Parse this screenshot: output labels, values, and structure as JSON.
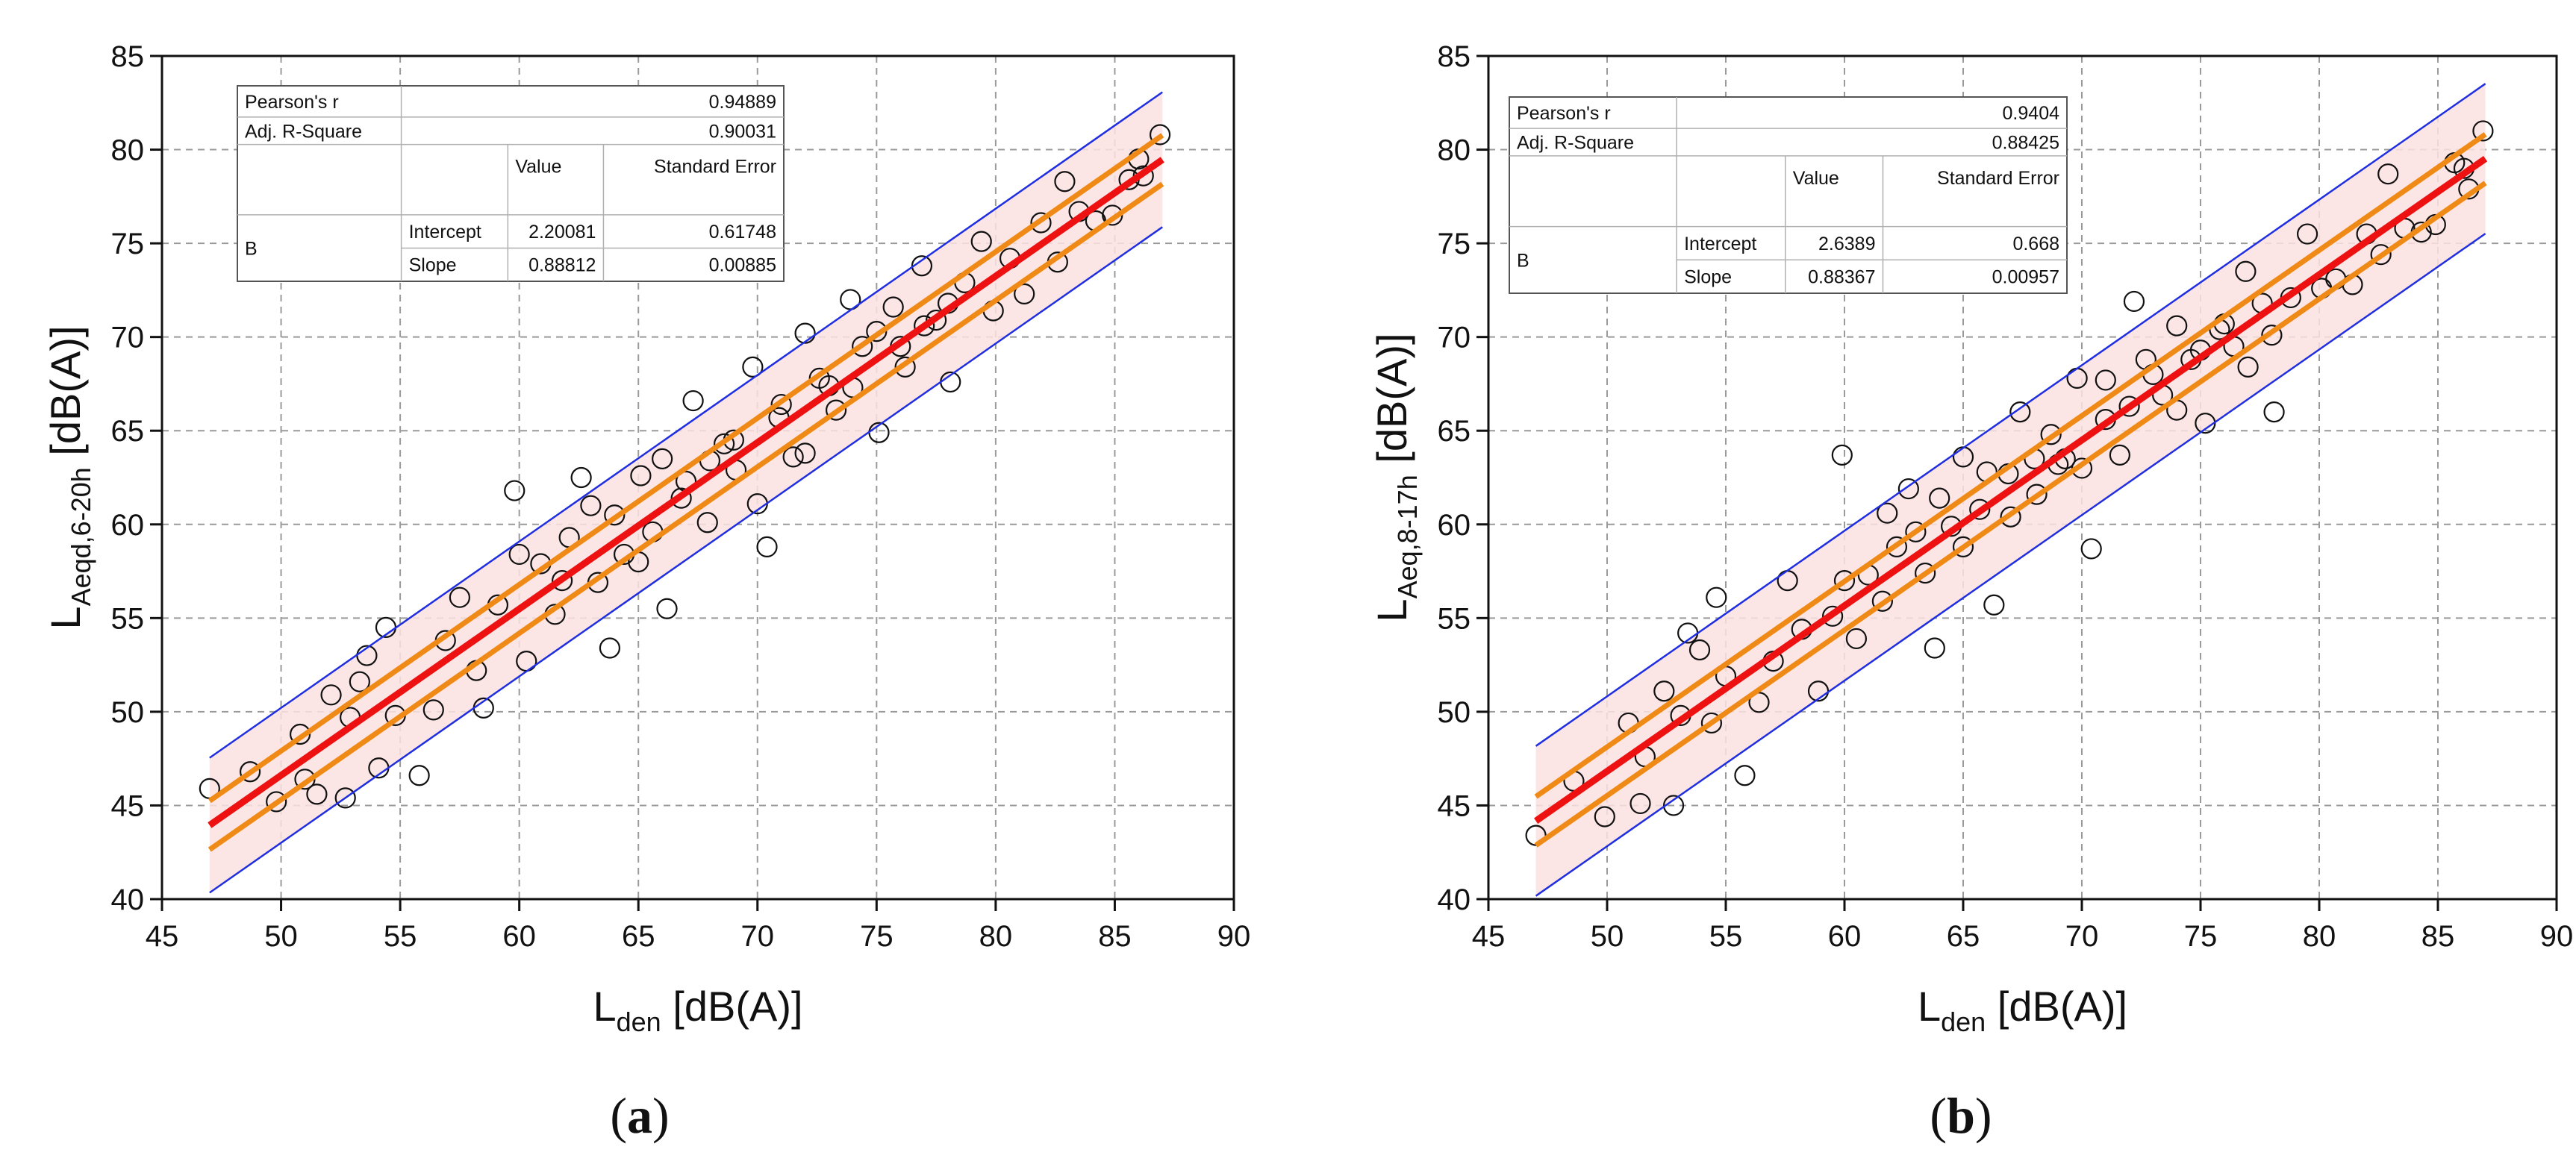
{
  "chart_data": [
    {
      "type": "scatter",
      "panel": "(a)",
      "caption_letter": "a",
      "xlabel_main": "L",
      "xlabel_sub": "den",
      "xlabel_unit": " [dB(A)]",
      "ylabel_main": "L",
      "ylabel_sub": "Aeqd,6-20h",
      "ylabel_unit": " [dB(A)]",
      "xlim": [
        45,
        90
      ],
      "ylim": [
        40,
        85
      ],
      "xticks": [
        45,
        50,
        55,
        60,
        65,
        70,
        75,
        80,
        85,
        90
      ],
      "yticks": [
        40,
        45,
        50,
        55,
        60,
        65,
        70,
        75,
        80,
        85
      ],
      "grid": true,
      "fit": {
        "intercept": 2.20081,
        "slope": 0.88812,
        "x_range": [
          47,
          87
        ]
      },
      "confidence_band_offset": 1.3,
      "prediction_band_offset": 3.6,
      "stats_table": {
        "pearson_label": "Pearson's r",
        "pearson_value": "0.94889",
        "adjr2_label": "Adj. R-Square",
        "adjr2_value": "0.90031",
        "value_header": "Value",
        "se_header": "Standard Error",
        "group_label": "B",
        "intercept_label": "Intercept",
        "intercept_value": "2.20081",
        "intercept_se": "0.61748",
        "slope_label": "Slope",
        "slope_value": "0.88812",
        "slope_se": "0.00885"
      },
      "points": [
        [
          47.0,
          45.9
        ],
        [
          48.7,
          46.8
        ],
        [
          49.8,
          45.2
        ],
        [
          50.8,
          48.8
        ],
        [
          51.0,
          46.4
        ],
        [
          51.5,
          45.6
        ],
        [
          52.1,
          50.9
        ],
        [
          52.7,
          45.4
        ],
        [
          52.9,
          49.7
        ],
        [
          53.3,
          51.6
        ],
        [
          53.6,
          53.0
        ],
        [
          54.1,
          47.0
        ],
        [
          54.4,
          54.5
        ],
        [
          54.8,
          49.8
        ],
        [
          55.8,
          46.6
        ],
        [
          56.4,
          50.1
        ],
        [
          56.9,
          53.8
        ],
        [
          57.5,
          56.1
        ],
        [
          58.2,
          52.2
        ],
        [
          58.5,
          50.2
        ],
        [
          59.1,
          55.7
        ],
        [
          59.8,
          61.8
        ],
        [
          60.3,
          52.7
        ],
        [
          60.9,
          57.9
        ],
        [
          61.5,
          55.2
        ],
        [
          62.1,
          59.3
        ],
        [
          62.6,
          62.5
        ],
        [
          63.3,
          56.9
        ],
        [
          63.8,
          53.4
        ],
        [
          64.4,
          58.4
        ],
        [
          65.1,
          62.6
        ],
        [
          65.6,
          59.6
        ],
        [
          66.2,
          55.5
        ],
        [
          66.8,
          61.4
        ],
        [
          67.3,
          66.6
        ],
        [
          67.9,
          60.1
        ],
        [
          68.6,
          64.3
        ],
        [
          69.1,
          62.9
        ],
        [
          69.8,
          68.4
        ],
        [
          70.4,
          58.8
        ],
        [
          70.9,
          65.7
        ],
        [
          71.5,
          63.6
        ],
        [
          72.0,
          70.2
        ],
        [
          72.6,
          67.8
        ],
        [
          73.3,
          66.1
        ],
        [
          73.9,
          72.0
        ],
        [
          74.4,
          69.5
        ],
        [
          75.1,
          64.9
        ],
        [
          75.7,
          71.6
        ],
        [
          76.2,
          68.4
        ],
        [
          76.9,
          73.8
        ],
        [
          77.5,
          70.9
        ],
        [
          78.1,
          67.6
        ],
        [
          78.7,
          72.9
        ],
        [
          79.4,
          75.1
        ],
        [
          79.9,
          71.4
        ],
        [
          80.6,
          74.2
        ],
        [
          81.2,
          72.3
        ],
        [
          81.9,
          76.1
        ],
        [
          82.6,
          74.0
        ],
        [
          82.9,
          78.3
        ],
        [
          83.5,
          76.7
        ],
        [
          84.2,
          76.2
        ],
        [
          84.9,
          76.5
        ],
        [
          85.6,
          78.4
        ],
        [
          86.0,
          79.5
        ],
        [
          86.2,
          78.6
        ],
        [
          86.9,
          80.8
        ],
        [
          60.0,
          58.4
        ],
        [
          61.8,
          57.0
        ],
        [
          63.0,
          61.0
        ],
        [
          64.0,
          60.5
        ],
        [
          65.0,
          58.0
        ],
        [
          66.0,
          63.5
        ],
        [
          67.0,
          62.3
        ],
        [
          68.0,
          63.4
        ],
        [
          69.0,
          64.5
        ],
        [
          70.0,
          61.1
        ],
        [
          71.0,
          66.4
        ],
        [
          72.0,
          63.8
        ],
        [
          73.0,
          67.4
        ],
        [
          74.0,
          67.3
        ],
        [
          75.0,
          70.3
        ],
        [
          76.0,
          69.5
        ],
        [
          77.0,
          70.6
        ],
        [
          78.0,
          71.8
        ]
      ]
    },
    {
      "type": "scatter",
      "panel": "(b)",
      "caption_letter": "b",
      "xlabel_main": "L",
      "xlabel_sub": "den",
      "xlabel_unit": " [dB(A)]",
      "ylabel_main": "L",
      "ylabel_sub": "Aeq,8-17h",
      "ylabel_unit": " [dB(A)]",
      "xlim": [
        45,
        90
      ],
      "ylim": [
        40,
        85
      ],
      "xticks": [
        45,
        50,
        55,
        60,
        65,
        70,
        75,
        80,
        85,
        90
      ],
      "yticks": [
        40,
        45,
        50,
        55,
        60,
        65,
        70,
        75,
        80,
        85
      ],
      "grid": true,
      "fit": {
        "intercept": 2.6389,
        "slope": 0.88367,
        "x_range": [
          47,
          87
        ]
      },
      "confidence_band_offset": 1.3,
      "prediction_band_offset": 4.0,
      "stats_table": {
        "pearson_label": "Pearson's r",
        "pearson_value": "0.9404",
        "adjr2_label": "Adj. R-Square",
        "adjr2_value": "0.88425",
        "value_header": "Value",
        "se_header": "Standard Error",
        "group_label": "B",
        "intercept_label": "Intercept",
        "intercept_value": "2.6389",
        "intercept_se": "0.668",
        "slope_label": "Slope",
        "slope_value": "0.88367",
        "slope_se": "0.00957"
      },
      "points": [
        [
          47.0,
          43.4
        ],
        [
          48.6,
          46.3
        ],
        [
          49.9,
          44.4
        ],
        [
          50.9,
          49.4
        ],
        [
          51.4,
          45.1
        ],
        [
          51.6,
          47.6
        ],
        [
          52.4,
          51.1
        ],
        [
          52.8,
          45.0
        ],
        [
          53.1,
          49.8
        ],
        [
          53.4,
          54.2
        ],
        [
          53.9,
          53.3
        ],
        [
          54.4,
          49.4
        ],
        [
          54.6,
          56.1
        ],
        [
          55.0,
          51.9
        ],
        [
          55.8,
          46.6
        ],
        [
          56.4,
          50.5
        ],
        [
          57.0,
          52.7
        ],
        [
          57.6,
          57.0
        ],
        [
          58.2,
          54.4
        ],
        [
          58.9,
          51.1
        ],
        [
          59.5,
          55.1
        ],
        [
          59.9,
          63.7
        ],
        [
          60.5,
          53.9
        ],
        [
          61.0,
          57.3
        ],
        [
          61.6,
          55.9
        ],
        [
          62.2,
          58.8
        ],
        [
          62.7,
          61.9
        ],
        [
          63.4,
          57.4
        ],
        [
          63.8,
          53.4
        ],
        [
          64.5,
          59.9
        ],
        [
          65.0,
          63.6
        ],
        [
          65.7,
          60.8
        ],
        [
          66.3,
          55.7
        ],
        [
          66.9,
          62.7
        ],
        [
          67.4,
          66.0
        ],
        [
          68.1,
          61.6
        ],
        [
          68.7,
          64.8
        ],
        [
          69.3,
          63.5
        ],
        [
          69.8,
          67.8
        ],
        [
          70.4,
          58.7
        ],
        [
          71.0,
          65.6
        ],
        [
          71.6,
          63.7
        ],
        [
          72.2,
          71.9
        ],
        [
          72.7,
          68.8
        ],
        [
          73.4,
          66.9
        ],
        [
          74.0,
          70.6
        ],
        [
          74.6,
          68.8
        ],
        [
          75.2,
          65.4
        ],
        [
          75.8,
          70.4
        ],
        [
          76.4,
          69.5
        ],
        [
          76.9,
          73.5
        ],
        [
          77.6,
          71.8
        ],
        [
          78.1,
          66.0
        ],
        [
          78.8,
          72.1
        ],
        [
          79.5,
          75.5
        ],
        [
          80.1,
          72.6
        ],
        [
          80.7,
          73.1
        ],
        [
          81.4,
          72.8
        ],
        [
          82.0,
          75.5
        ],
        [
          82.6,
          74.4
        ],
        [
          82.9,
          78.7
        ],
        [
          83.6,
          75.8
        ],
        [
          84.3,
          75.6
        ],
        [
          84.9,
          76.0
        ],
        [
          85.7,
          79.3
        ],
        [
          86.1,
          79.0
        ],
        [
          86.3,
          77.9
        ],
        [
          86.9,
          81.0
        ],
        [
          60.0,
          57.0
        ],
        [
          61.8,
          60.6
        ],
        [
          63.0,
          59.6
        ],
        [
          64.0,
          61.4
        ],
        [
          65.0,
          58.8
        ],
        [
          66.0,
          62.8
        ],
        [
          67.0,
          60.4
        ],
        [
          68.0,
          63.5
        ],
        [
          69.0,
          63.2
        ],
        [
          70.0,
          63.0
        ],
        [
          71.0,
          67.7
        ],
        [
          72.0,
          66.3
        ],
        [
          73.0,
          68.0
        ],
        [
          74.0,
          66.1
        ],
        [
          75.0,
          69.3
        ],
        [
          76.0,
          70.7
        ],
        [
          77.0,
          68.4
        ],
        [
          78.0,
          70.1
        ]
      ]
    }
  ]
}
